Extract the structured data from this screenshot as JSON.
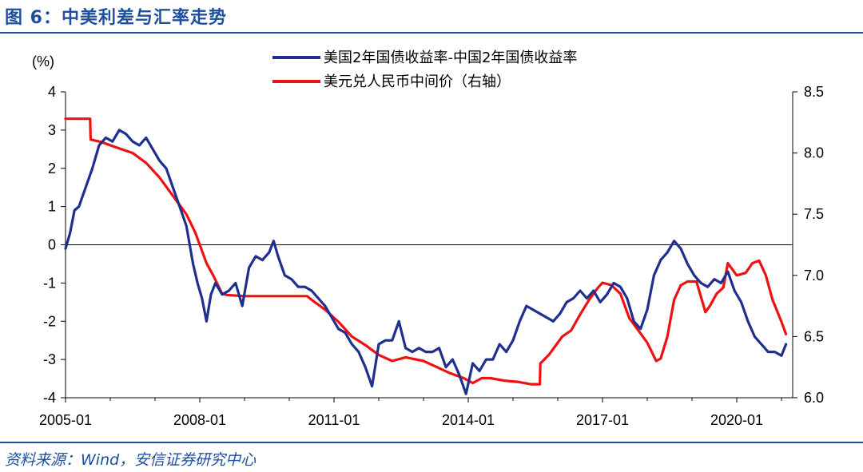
{
  "figure": {
    "title": "图 6：中美利差与汇率走势",
    "source": "资料来源：Wind，安信证券研究中心"
  },
  "colors": {
    "spread": "#1f2f8f",
    "fx": "#ee1111",
    "frame": "#1f4e9c"
  },
  "chart_data": {
    "type": "line",
    "y_unit_label": "(%)",
    "ylim_left": [
      -4,
      4
    ],
    "ylim_right": [
      6.0,
      8.5
    ],
    "xlim": [
      2005.0,
      2021.25
    ],
    "y_ticks_left": [
      "4",
      "3",
      "2",
      "1",
      "0",
      "-1",
      "-2",
      "-3",
      "-4"
    ],
    "y_ticks_right": [
      "8.5",
      "8.0",
      "7.5",
      "7.0",
      "6.5",
      "6.0"
    ],
    "x_ticks": [
      "2005-01",
      "2008-01",
      "2011-01",
      "2014-01",
      "2017-01",
      "2020-01"
    ],
    "legend": [
      "美国2年国债收益率-中国2年国债收益率",
      "美元兑人民币中间价（右轴）"
    ],
    "series": [
      {
        "name": "美国2年国债收益率-中国2年国债收益率",
        "axis": "left",
        "x": [
          2005.0,
          2005.1,
          2005.2,
          2005.3,
          2005.45,
          2005.6,
          2005.75,
          2005.9,
          2006.05,
          2006.2,
          2006.35,
          2006.5,
          2006.65,
          2006.8,
          2006.95,
          2007.1,
          2007.25,
          2007.4,
          2007.55,
          2007.7,
          2007.85,
          2007.95,
          2008.05,
          2008.15,
          2008.25,
          2008.35,
          2008.5,
          2008.65,
          2008.8,
          2008.95,
          2009.1,
          2009.25,
          2009.4,
          2009.55,
          2009.65,
          2009.75,
          2009.9,
          2010.05,
          2010.2,
          2010.35,
          2010.5,
          2010.65,
          2010.8,
          2010.95,
          2011.1,
          2011.25,
          2011.4,
          2011.55,
          2011.7,
          2011.85,
          2012.0,
          2012.15,
          2012.3,
          2012.45,
          2012.6,
          2012.75,
          2012.9,
          2013.05,
          2013.2,
          2013.35,
          2013.5,
          2013.65,
          2013.8,
          2013.95,
          2014.1,
          2014.25,
          2014.4,
          2014.55,
          2014.7,
          2014.85,
          2015.0,
          2015.15,
          2015.3,
          2015.45,
          2015.6,
          2015.75,
          2015.9,
          2016.05,
          2016.2,
          2016.35,
          2016.5,
          2016.65,
          2016.8,
          2016.95,
          2017.1,
          2017.25,
          2017.4,
          2017.55,
          2017.7,
          2017.85,
          2018.0,
          2018.15,
          2018.3,
          2018.45,
          2018.6,
          2018.75,
          2018.9,
          2019.05,
          2019.2,
          2019.35,
          2019.5,
          2019.65,
          2019.8,
          2019.95,
          2020.1,
          2020.25,
          2020.4,
          2020.55,
          2020.7,
          2020.85,
          2021.0,
          2021.1
        ],
        "values": [
          -0.1,
          0.3,
          0.9,
          1.0,
          1.5,
          2.0,
          2.6,
          2.8,
          2.7,
          3.0,
          2.9,
          2.7,
          2.6,
          2.8,
          2.5,
          2.2,
          2.0,
          1.5,
          1.0,
          0.5,
          -0.5,
          -1.0,
          -1.4,
          -2.0,
          -1.3,
          -1.0,
          -1.3,
          -1.2,
          -1.0,
          -1.6,
          -0.6,
          -0.3,
          -0.4,
          -0.2,
          0.1,
          -0.3,
          -0.8,
          -0.9,
          -1.1,
          -1.1,
          -1.2,
          -1.4,
          -1.6,
          -1.9,
          -2.2,
          -2.3,
          -2.6,
          -2.8,
          -3.2,
          -3.7,
          -2.6,
          -2.5,
          -2.5,
          -2.0,
          -2.7,
          -2.8,
          -2.7,
          -2.8,
          -2.8,
          -2.7,
          -3.2,
          -3.0,
          -3.4,
          -3.9,
          -3.1,
          -3.3,
          -3.0,
          -3.0,
          -2.6,
          -2.8,
          -2.5,
          -2.0,
          -1.6,
          -1.7,
          -1.8,
          -1.9,
          -2.0,
          -1.8,
          -1.5,
          -1.4,
          -1.2,
          -1.4,
          -1.2,
          -1.5,
          -1.3,
          -1.0,
          -1.1,
          -1.4,
          -2.0,
          -2.2,
          -1.7,
          -0.8,
          -0.4,
          -0.2,
          0.1,
          -0.1,
          -0.5,
          -0.8,
          -1.0,
          -1.1,
          -0.9,
          -1.0,
          -0.7,
          -1.2,
          -1.5,
          -2.0,
          -2.4,
          -2.6,
          -2.8,
          -2.8,
          -2.9,
          -2.6
        ]
      },
      {
        "name": "美元兑人民币中间价（右轴）",
        "axis": "right",
        "x": [
          2005.0,
          2005.55,
          2005.56,
          2005.8,
          2006.1,
          2006.5,
          2006.8,
          2007.1,
          2007.4,
          2007.7,
          2007.9,
          2008.0,
          2008.15,
          2008.3,
          2008.5,
          2008.6,
          2009.0,
          2009.5,
          2010.0,
          2010.4,
          2010.5,
          2010.8,
          2011.1,
          2011.4,
          2011.7,
          2012.0,
          2012.3,
          2012.6,
          2013.0,
          2013.3,
          2013.6,
          2013.9,
          2014.1,
          2014.3,
          2014.5,
          2014.8,
          2015.1,
          2015.4,
          2015.6,
          2015.61,
          2015.8,
          2016.1,
          2016.3,
          2016.5,
          2016.7,
          2016.9,
          2017.0,
          2017.2,
          2017.4,
          2017.6,
          2017.8,
          2018.0,
          2018.2,
          2018.3,
          2018.45,
          2018.6,
          2018.75,
          2018.9,
          2019.1,
          2019.3,
          2019.4,
          2019.55,
          2019.7,
          2019.8,
          2020.0,
          2020.2,
          2020.35,
          2020.5,
          2020.65,
          2020.8,
          2021.0,
          2021.1
        ],
        "values": [
          8.28,
          8.28,
          8.11,
          8.09,
          8.05,
          8.0,
          7.92,
          7.8,
          7.65,
          7.5,
          7.35,
          7.25,
          7.1,
          7.0,
          6.85,
          6.84,
          6.83,
          6.83,
          6.83,
          6.83,
          6.8,
          6.72,
          6.62,
          6.5,
          6.43,
          6.35,
          6.3,
          6.33,
          6.3,
          6.25,
          6.2,
          6.16,
          6.12,
          6.16,
          6.16,
          6.14,
          6.13,
          6.11,
          6.11,
          6.28,
          6.35,
          6.5,
          6.55,
          6.68,
          6.8,
          6.9,
          6.94,
          6.92,
          6.85,
          6.65,
          6.55,
          6.45,
          6.3,
          6.32,
          6.5,
          6.8,
          6.92,
          6.95,
          6.95,
          6.7,
          6.75,
          6.85,
          6.9,
          7.1,
          7.0,
          7.02,
          7.1,
          7.12,
          7.0,
          6.8,
          6.62,
          6.52
        ]
      }
    ]
  }
}
